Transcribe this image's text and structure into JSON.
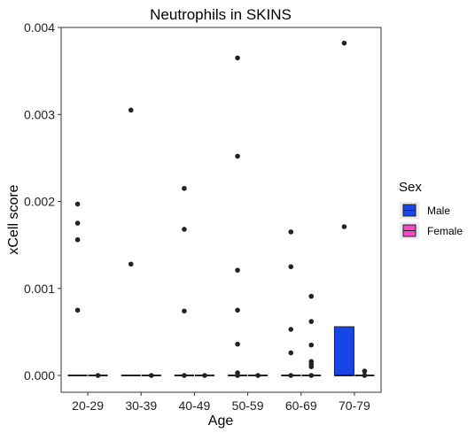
{
  "chart_data": {
    "type": "box",
    "title": "Neutrophils in SKINS",
    "xlabel": "Age",
    "ylabel": "xCell score",
    "categories": [
      "20-29",
      "30-39",
      "40-49",
      "50-59",
      "60-69",
      "70-79"
    ],
    "ylim": [
      0,
      0.004
    ],
    "yticks": [
      0,
      0.001,
      0.002,
      0.003,
      0.004
    ],
    "ytick_labels": [
      "0.000",
      "0.001",
      "0.002",
      "0.003",
      "0.004"
    ],
    "grid": false,
    "legend": {
      "title": "Sex",
      "position": "right",
      "entries": [
        {
          "name": "Male",
          "color": "#1745e6"
        },
        {
          "name": "Female",
          "color": "#ff44cc"
        }
      ]
    },
    "series": [
      {
        "name": "Male",
        "color": "#1745e6",
        "boxes": [
          {
            "category": "20-29",
            "q1": 0,
            "median": 0,
            "q3": 0,
            "outliers": [
              0.00197,
              0.00175,
              0.00156,
              0.00075
            ]
          },
          {
            "category": "30-39",
            "q1": 0,
            "median": 0,
            "q3": 0,
            "outliers": [
              0.00305,
              0.00128
            ]
          },
          {
            "category": "40-49",
            "q1": 0,
            "median": 0,
            "q3": 0,
            "outliers": [
              0.00215,
              0.00168,
              0.00074,
              0.0
            ]
          },
          {
            "category": "50-59",
            "q1": 0,
            "median": 0,
            "q3": 0,
            "outliers": [
              0.00365,
              0.00252,
              0.00121,
              0.00075,
              0.00036,
              3e-05,
              0.0
            ]
          },
          {
            "category": "60-69",
            "q1": 0,
            "median": 0,
            "q3": 0,
            "outliers": [
              0.00165,
              0.00125,
              0.00053,
              0.00026,
              0.0
            ]
          },
          {
            "category": "70-79",
            "q1": 0,
            "median": 0,
            "q3": 0.00056,
            "outliers": [
              0.00382,
              0.00171
            ]
          }
        ]
      },
      {
        "name": "Female",
        "color": "#ff44cc",
        "boxes": [
          {
            "category": "20-29",
            "q1": 0,
            "median": 0,
            "q3": 0,
            "outliers": [
              0.0
            ]
          },
          {
            "category": "30-39",
            "q1": 0,
            "median": 0,
            "q3": 0,
            "outliers": [
              0.0
            ]
          },
          {
            "category": "40-49",
            "q1": 0,
            "median": 0,
            "q3": 0,
            "outliers": [
              0.0
            ]
          },
          {
            "category": "50-59",
            "q1": 0,
            "median": 0,
            "q3": 0,
            "outliers": [
              0.0
            ]
          },
          {
            "category": "60-69",
            "q1": 0,
            "median": 0,
            "q3": 0,
            "outliers": [
              0.00091,
              0.00062,
              0.00035,
              0.00016,
              0.00013,
              0.0001,
              0.0
            ]
          },
          {
            "category": "70-79",
            "q1": 0,
            "median": 0,
            "q3": 0,
            "outliers": [
              5e-05,
              0.0
            ]
          }
        ]
      }
    ]
  }
}
